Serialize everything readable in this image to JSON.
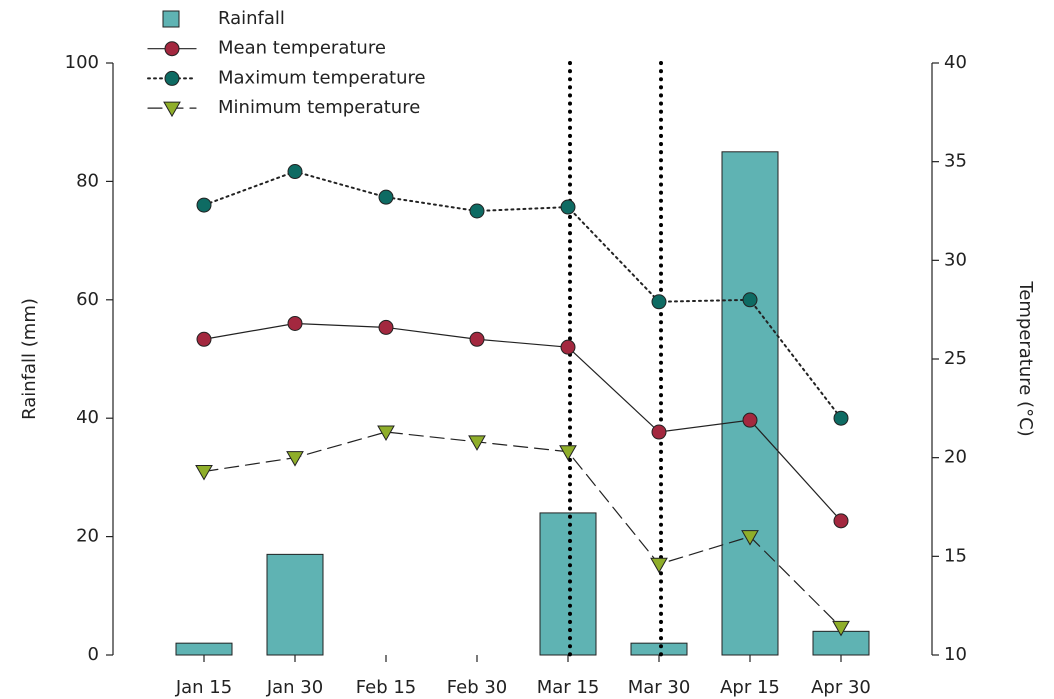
{
  "chart_data": {
    "type": "bar",
    "categories": [
      "Jan 15",
      "Jan 30",
      "Feb 15",
      "Feb 30",
      "Mar 15",
      "Mar 30",
      "Apr 15",
      "Apr 30"
    ],
    "ylabel": "Rainfall (mm)",
    "y2label": "Temperature (°C)",
    "ylim": [
      0,
      100
    ],
    "yticks": [
      0,
      20,
      40,
      60,
      80,
      100
    ],
    "y2lim": [
      10,
      40
    ],
    "y2ticks": [
      10,
      15,
      20,
      25,
      30,
      35,
      40
    ],
    "legend": "top",
    "series": [
      {
        "name": "Rainfall",
        "type": "bar",
        "color": "#5fb3b3",
        "values": [
          2,
          17,
          0,
          0,
          24,
          2,
          85,
          4
        ]
      },
      {
        "name": "Mean temperature",
        "type": "line",
        "axis": "y2",
        "color": "#a3283f",
        "linestyle": "solid",
        "marker": "circle",
        "values": [
          26,
          26.8,
          26.6,
          26,
          25.6,
          21.3,
          21.9,
          16.8
        ]
      },
      {
        "name": "Maximum temperature",
        "type": "line",
        "axis": "y2",
        "color": "#0e6b63",
        "linestyle": "dotted",
        "marker": "circle",
        "values": [
          32.8,
          34.5,
          33.2,
          32.5,
          32.7,
          27.9,
          28,
          22
        ]
      },
      {
        "name": "Minimum temperature",
        "type": "line",
        "axis": "y2",
        "color": "#8fae2a",
        "linestyle": "dashed",
        "marker": "triangle",
        "values": [
          19.3,
          20,
          21.3,
          20.8,
          20.3,
          14.6,
          16,
          11.4
        ]
      }
    ]
  }
}
